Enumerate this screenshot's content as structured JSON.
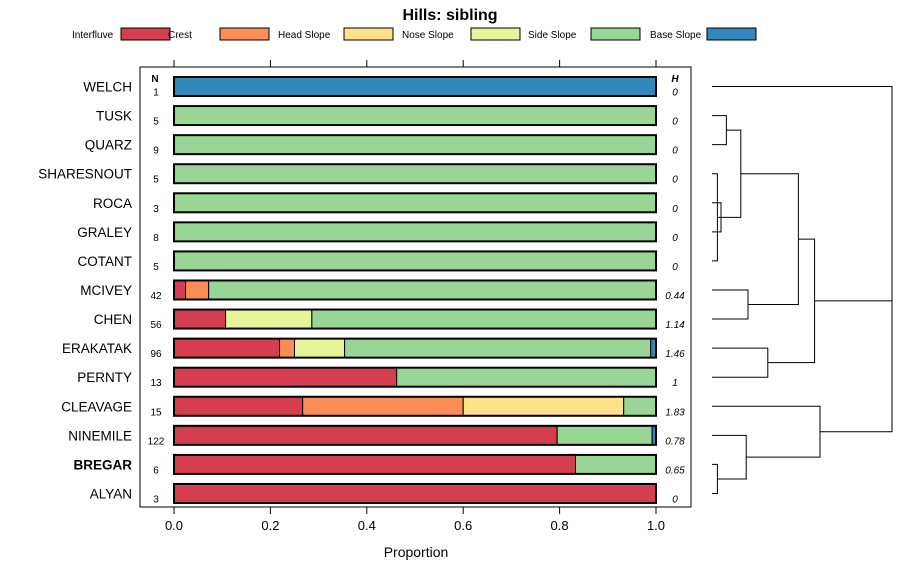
{
  "chart_data": {
    "type": "bar",
    "orientation": "horizontal-stacked",
    "title": "Hills: sibling",
    "xlabel": "Proportion",
    "ylabel": "",
    "xlim": [
      0,
      1
    ],
    "xticks": [
      "0.0",
      "0.2",
      "0.4",
      "0.6",
      "0.8",
      "1.0"
    ],
    "n_header": "N",
    "h_header": "H",
    "legend_position": "top",
    "series": [
      {
        "name": "Interfluve",
        "color": "#d53e4f"
      },
      {
        "name": "Crest",
        "color": "#fc8d59"
      },
      {
        "name": "Head Slope",
        "color": "#fee08b"
      },
      {
        "name": "Nose Slope",
        "color": "#e6f598"
      },
      {
        "name": "Side Slope",
        "color": "#99d594"
      },
      {
        "name": "Base Slope",
        "color": "#3288bd"
      }
    ],
    "rows": [
      {
        "label": "WELCH",
        "bold": false,
        "n": "1",
        "h": "0",
        "values": [
          0,
          0,
          0,
          0,
          0,
          1
        ]
      },
      {
        "label": "TUSK",
        "bold": false,
        "n": "5",
        "h": "0",
        "values": [
          0,
          0,
          0,
          0,
          1,
          0
        ]
      },
      {
        "label": "QUARZ",
        "bold": false,
        "n": "9",
        "h": "0",
        "values": [
          0,
          0,
          0,
          0,
          1,
          0
        ]
      },
      {
        "label": "SHARESNOUT",
        "bold": false,
        "n": "5",
        "h": "0",
        "values": [
          0,
          0,
          0,
          0,
          1,
          0
        ]
      },
      {
        "label": "ROCA",
        "bold": false,
        "n": "3",
        "h": "0",
        "values": [
          0,
          0,
          0,
          0,
          1,
          0
        ]
      },
      {
        "label": "GRALEY",
        "bold": false,
        "n": "8",
        "h": "0",
        "values": [
          0,
          0,
          0,
          0,
          1,
          0
        ]
      },
      {
        "label": "COTANT",
        "bold": false,
        "n": "5",
        "h": "0",
        "values": [
          0,
          0,
          0,
          0,
          1,
          0
        ]
      },
      {
        "label": "MCIVEY",
        "bold": false,
        "n": "42",
        "h": "0.44",
        "values": [
          0.024,
          0.048,
          0,
          0,
          0.928,
          0
        ]
      },
      {
        "label": "CHEN",
        "bold": false,
        "n": "56",
        "h": "1.14",
        "values": [
          0.107,
          0,
          0,
          0.179,
          0.714,
          0
        ]
      },
      {
        "label": "ERAKATAK",
        "bold": false,
        "n": "96",
        "h": "1.46",
        "values": [
          0.219,
          0.031,
          0,
          0.104,
          0.635,
          0.011
        ]
      },
      {
        "label": "PERNTY",
        "bold": false,
        "n": "13",
        "h": "1",
        "values": [
          0.462,
          0,
          0,
          0,
          0.538,
          0
        ]
      },
      {
        "label": "CLEAVAGE",
        "bold": false,
        "n": "15",
        "h": "1.83",
        "values": [
          0.267,
          0.333,
          0.333,
          0,
          0.067,
          0
        ]
      },
      {
        "label": "NINEMILE",
        "bold": false,
        "n": "122",
        "h": "0.78",
        "values": [
          0.795,
          0,
          0,
          0,
          0.197,
          0.008
        ]
      },
      {
        "label": "BREGAR",
        "bold": true,
        "n": "6",
        "h": "0.65",
        "values": [
          0.833,
          0,
          0,
          0,
          0.167,
          0
        ]
      },
      {
        "label": "ALYAN",
        "bold": false,
        "n": "3",
        "h": "0",
        "values": [
          1,
          0,
          0,
          0,
          0,
          0
        ]
      }
    ],
    "dendrogram": {
      "type": "hierarchical-clustering",
      "merges": [
        {
          "id": "A",
          "left": "SHARESNOUT",
          "right": "COTANT",
          "height": 0.03
        },
        {
          "id": "B",
          "left": "ROCA",
          "right": "GRALEY",
          "height": 0.05
        },
        {
          "id": "C",
          "left": "TUSK",
          "right": "QUARZ",
          "height": 0.08
        },
        {
          "id": "D",
          "left": "A",
          "right": "B",
          "height": 0.12
        },
        {
          "id": "E",
          "left": "D",
          "right": "C",
          "height": 0.16
        },
        {
          "id": "F",
          "left": "MCIVEY",
          "right": "CHEN",
          "height": 0.2
        },
        {
          "id": "G",
          "left": "ERAKATAK",
          "right": "PERNTY",
          "height": 0.31
        },
        {
          "id": "H",
          "left": "E",
          "right": "F",
          "height": 0.48
        },
        {
          "id": "I",
          "left": "H",
          "right": "G",
          "height": 0.57
        },
        {
          "id": "J",
          "left": "ALYAN",
          "right": "BREGAR",
          "height": 0.03
        },
        {
          "id": "K",
          "left": "NINEMILE",
          "right": "J",
          "height": 0.19
        },
        {
          "id": "L",
          "left": "CLEAVAGE",
          "right": "K",
          "height": 0.6
        },
        {
          "id": "M",
          "left": "I",
          "right": "L",
          "height": 1.0
        },
        {
          "id": "N",
          "left": "WELCH",
          "right": "M",
          "height": 1.0
        }
      ]
    }
  }
}
